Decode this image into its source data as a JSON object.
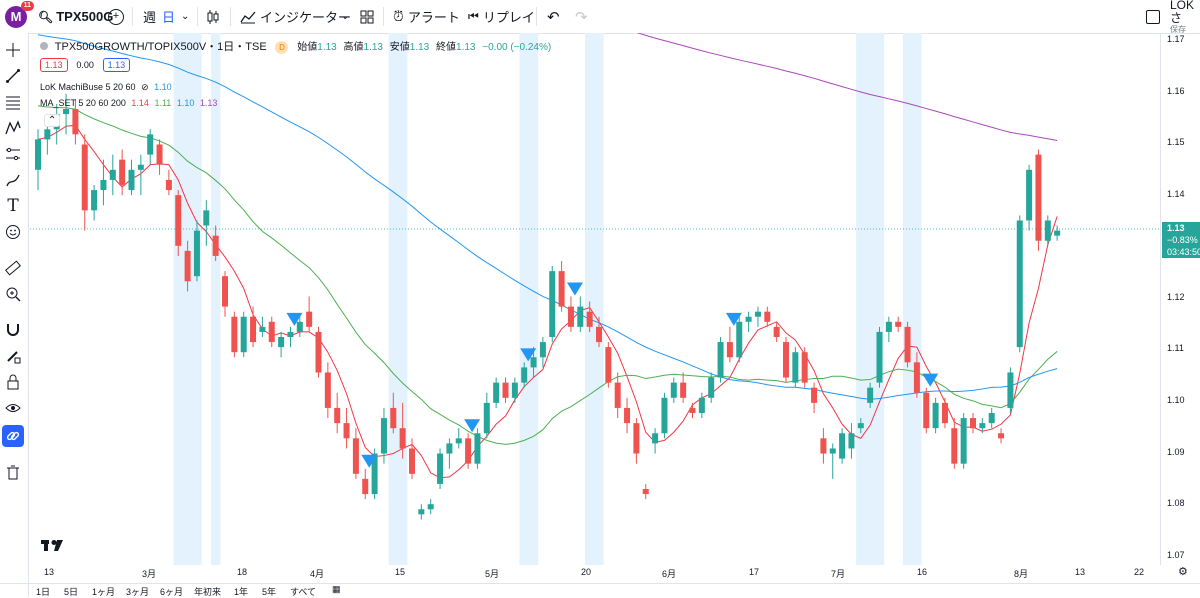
{
  "topbar": {
    "avatar_letter": "M",
    "avatar_badge": "11",
    "symbol": "TPX500G",
    "interval_week": "週",
    "interval_day": "日",
    "indicators_label": "インジケーター",
    "alert_label": "アラート",
    "replay_label": "リプレイ",
    "layout_name": "LOKさ",
    "layout_status": "保存"
  },
  "legend": {
    "title": "TPX500GROWTH/TOPIX500V・1日・TSE",
    "badge": "D",
    "open_label": "始値",
    "open": "1.13",
    "high_label": "高値",
    "high": "1.13",
    "low_label": "安値",
    "low": "1.13",
    "close_label": "終値",
    "close": "1.13",
    "change": "−0.00 (−0.24%)",
    "bid": "1.13",
    "spread": "0.00",
    "ask": "1.13",
    "indicator1_name": "LoK MachiBuse 5 20 60",
    "indicator1_value": "1.10",
    "indicator2_name": "MA_SET 5 20 60 200",
    "indicator2_v1": "1.14",
    "indicator2_v2": "1.11",
    "indicator2_v3": "1.10",
    "indicator2_v4": "1.13"
  },
  "price_axis": {
    "ticks": [
      "1.17",
      "1.16",
      "1.15",
      "1.14",
      "1.12",
      "1.11",
      "1.10",
      "1.09",
      "1.08",
      "1.07"
    ],
    "last_price": "1.13",
    "last_change": "−0.83%",
    "countdown": "03:43:50"
  },
  "time_axis": {
    "ticks": [
      "13",
      "3月",
      "18",
      "4月",
      "15",
      "5月",
      "20",
      "6月",
      "17",
      "7月",
      "16",
      "8月",
      "13",
      "22"
    ]
  },
  "bottombar": {
    "ranges": [
      "1日",
      "5日",
      "1ヶ月",
      "3ヶ月",
      "6ヶ月",
      "年初来",
      "1年",
      "5年",
      "すべて"
    ]
  },
  "colors": {
    "up": "#26a69a",
    "down": "#ef5350",
    "ma5": "#f23645",
    "ma20": "#4caf50",
    "ma60": "#2196f3",
    "ma200": "#ab47bc",
    "highlight": "#e3f2fd",
    "signal": "#2196f3"
  },
  "chart_data": {
    "type": "candlestick",
    "ylim": [
      1.067,
      1.172
    ],
    "candles": [
      [
        1.145,
        1.153,
        1.141,
        1.151
      ],
      [
        1.151,
        1.156,
        1.148,
        1.153
      ],
      [
        1.153,
        1.158,
        1.15,
        1.156
      ],
      [
        1.156,
        1.16,
        1.152,
        1.157
      ],
      [
        1.157,
        1.159,
        1.15,
        1.152
      ],
      [
        1.15,
        1.152,
        1.133,
        1.137
      ],
      [
        1.137,
        1.142,
        1.135,
        1.141
      ],
      [
        1.141,
        1.147,
        1.138,
        1.143
      ],
      [
        1.143,
        1.148,
        1.14,
        1.145
      ],
      [
        1.147,
        1.149,
        1.14,
        1.142
      ],
      [
        1.141,
        1.147,
        1.14,
        1.145
      ],
      [
        1.145,
        1.148,
        1.14,
        1.146
      ],
      [
        1.148,
        1.153,
        1.146,
        1.152
      ],
      [
        1.15,
        1.151,
        1.144,
        1.146
      ],
      [
        1.143,
        1.145,
        1.14,
        1.141
      ],
      [
        1.14,
        1.141,
        1.128,
        1.13
      ],
      [
        1.129,
        1.131,
        1.121,
        1.123
      ],
      [
        1.124,
        1.135,
        1.123,
        1.133
      ],
      [
        1.134,
        1.139,
        1.13,
        1.137
      ],
      [
        1.132,
        1.134,
        1.127,
        1.128
      ],
      [
        1.124,
        1.125,
        1.116,
        1.118
      ],
      [
        1.116,
        1.117,
        1.108,
        1.109
      ],
      [
        1.109,
        1.117,
        1.108,
        1.116
      ],
      [
        1.116,
        1.118,
        1.11,
        1.111
      ],
      [
        1.113,
        1.116,
        1.112,
        1.114
      ],
      [
        1.115,
        1.116,
        1.11,
        1.111
      ],
      [
        1.11,
        1.113,
        1.108,
        1.112
      ],
      [
        1.112,
        1.114,
        1.11,
        1.113
      ],
      [
        1.113,
        1.116,
        1.112,
        1.115
      ],
      [
        1.117,
        1.12,
        1.113,
        1.114
      ],
      [
        1.113,
        1.114,
        1.104,
        1.105
      ],
      [
        1.105,
        1.107,
        1.096,
        1.098
      ],
      [
        1.098,
        1.101,
        1.093,
        1.095
      ],
      [
        1.095,
        1.098,
        1.09,
        1.092
      ],
      [
        1.092,
        1.094,
        1.084,
        1.085
      ],
      [
        1.084,
        1.086,
        1.08,
        1.081
      ],
      [
        1.081,
        1.09,
        1.08,
        1.089
      ],
      [
        1.089,
        1.098,
        1.087,
        1.096
      ],
      [
        1.098,
        1.101,
        1.093,
        1.094
      ],
      [
        1.094,
        1.099,
        1.088,
        1.09
      ],
      [
        1.09,
        1.092,
        1.084,
        1.085
      ],
      [
        1.077,
        1.079,
        1.076,
        1.078
      ],
      [
        1.078,
        1.08,
        1.077,
        1.079
      ],
      [
        1.083,
        1.09,
        1.082,
        1.089
      ],
      [
        1.089,
        1.092,
        1.086,
        1.091
      ],
      [
        1.091,
        1.094,
        1.09,
        1.092
      ],
      [
        1.092,
        1.093,
        1.086,
        1.087
      ],
      [
        1.087,
        1.094,
        1.086,
        1.093
      ],
      [
        1.093,
        1.101,
        1.092,
        1.099
      ],
      [
        1.099,
        1.104,
        1.098,
        1.103
      ],
      [
        1.103,
        1.104,
        1.099,
        1.1
      ],
      [
        1.1,
        1.104,
        1.099,
        1.103
      ],
      [
        1.103,
        1.107,
        1.102,
        1.106
      ],
      [
        1.106,
        1.11,
        1.104,
        1.108
      ],
      [
        1.108,
        1.112,
        1.106,
        1.111
      ],
      [
        1.112,
        1.126,
        1.111,
        1.125
      ],
      [
        1.125,
        1.127,
        1.117,
        1.118
      ],
      [
        1.118,
        1.12,
        1.113,
        1.114
      ],
      [
        1.114,
        1.12,
        1.113,
        1.118
      ],
      [
        1.117,
        1.119,
        1.113,
        1.114
      ],
      [
        1.114,
        1.116,
        1.11,
        1.111
      ],
      [
        1.11,
        1.111,
        1.102,
        1.103
      ],
      [
        1.103,
        1.105,
        1.096,
        1.098
      ],
      [
        1.098,
        1.1,
        1.093,
        1.095
      ],
      [
        1.095,
        1.096,
        1.087,
        1.089
      ],
      [
        1.082,
        1.083,
        1.08,
        1.081
      ],
      [
        1.091,
        1.094,
        1.089,
        1.093
      ],
      [
        1.093,
        1.101,
        1.092,
        1.1
      ],
      [
        1.1,
        1.104,
        1.099,
        1.103
      ],
      [
        1.103,
        1.105,
        1.099,
        1.1
      ],
      [
        1.098,
        1.099,
        1.096,
        1.097
      ],
      [
        1.097,
        1.101,
        1.096,
        1.1
      ],
      [
        1.1,
        1.105,
        1.099,
        1.104
      ],
      [
        1.104,
        1.112,
        1.103,
        1.111
      ],
      [
        1.111,
        1.114,
        1.107,
        1.108
      ],
      [
        1.108,
        1.116,
        1.107,
        1.115
      ],
      [
        1.115,
        1.117,
        1.113,
        1.116
      ],
      [
        1.116,
        1.118,
        1.114,
        1.117
      ],
      [
        1.117,
        1.118,
        1.114,
        1.115
      ],
      [
        1.114,
        1.115,
        1.111,
        1.112
      ],
      [
        1.111,
        1.112,
        1.103,
        1.104
      ],
      [
        1.103,
        1.11,
        1.102,
        1.109
      ],
      [
        1.109,
        1.11,
        1.102,
        1.103
      ],
      [
        1.102,
        1.103,
        1.097,
        1.099
      ],
      [
        1.092,
        1.094,
        1.087,
        1.089
      ],
      [
        1.089,
        1.091,
        1.084,
        1.09
      ],
      [
        1.088,
        1.094,
        1.087,
        1.093
      ],
      [
        1.09,
        1.095,
        1.088,
        1.093
      ],
      [
        1.094,
        1.096,
        1.093,
        1.095
      ],
      [
        1.099,
        1.103,
        1.098,
        1.102
      ],
      [
        1.103,
        1.114,
        1.102,
        1.113
      ],
      [
        1.113,
        1.116,
        1.111,
        1.115
      ],
      [
        1.115,
        1.116,
        1.113,
        1.114
      ],
      [
        1.114,
        1.115,
        1.106,
        1.107
      ],
      [
        1.107,
        1.109,
        1.1,
        1.101
      ],
      [
        1.101,
        1.102,
        1.093,
        1.094
      ],
      [
        1.094,
        1.1,
        1.093,
        1.099
      ],
      [
        1.099,
        1.1,
        1.094,
        1.095
      ],
      [
        1.094,
        1.096,
        1.086,
        1.087
      ],
      [
        1.087,
        1.097,
        1.086,
        1.096
      ],
      [
        1.096,
        1.097,
        1.093,
        1.094
      ],
      [
        1.094,
        1.096,
        1.093,
        1.095
      ],
      [
        1.095,
        1.098,
        1.094,
        1.097
      ],
      [
        1.093,
        1.094,
        1.091,
        1.092
      ],
      [
        1.098,
        1.106,
        1.097,
        1.105
      ],
      [
        1.11,
        1.136,
        1.109,
        1.135
      ],
      [
        1.135,
        1.146,
        1.133,
        1.145
      ],
      [
        1.148,
        1.149,
        1.129,
        1.131
      ],
      [
        1.131,
        1.136,
        1.13,
        1.135
      ],
      [
        1.132,
        1.134,
        1.131,
        1.133
      ]
    ],
    "signals_index": [
      27,
      35,
      46,
      52,
      57,
      74,
      95
    ],
    "highlight_ranges": [
      [
        15,
        18
      ],
      [
        19,
        20
      ],
      [
        38,
        40
      ],
      [
        52,
        54
      ],
      [
        59,
        61
      ],
      [
        88,
        91
      ],
      [
        93,
        95
      ]
    ]
  }
}
